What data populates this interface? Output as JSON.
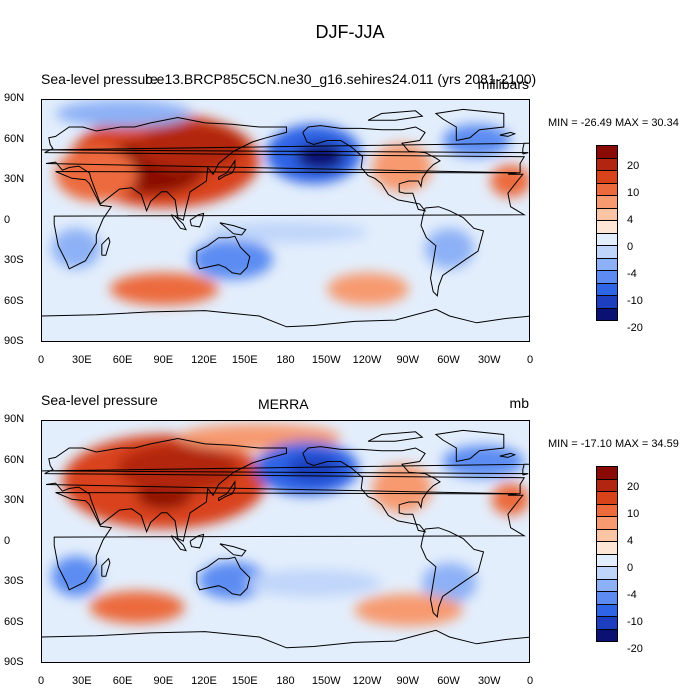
{
  "main_title": "DJF-JJA",
  "colors": {
    "scale": [
      "#0a1172",
      "#1d3fbf",
      "#2e64e6",
      "#5c8cf2",
      "#8db1f6",
      "#bfd5fa",
      "#e3eefc",
      "#fde6d6",
      "#fbc4a4",
      "#f79a70",
      "#ec6a3c",
      "#d9431a",
      "#b22510",
      "#8a0b05"
    ],
    "land": "#000000",
    "frame": "#000000"
  },
  "colorbar_levels": [
    "20",
    "10",
    "4",
    "0",
    "-4",
    "-10",
    "-20"
  ],
  "axes": {
    "y_ticks": [
      "90N",
      "60N",
      "30N",
      "0",
      "30S",
      "60S",
      "90S"
    ],
    "x_ticks": [
      "0",
      "30E",
      "60E",
      "90E",
      "120E",
      "150E",
      "180",
      "150W",
      "120W",
      "90W",
      "60W",
      "30W",
      "0"
    ]
  },
  "panels": [
    {
      "id": "top",
      "left_title": "Sea-level pressure",
      "center_title": "b.e13.BRCP85C5CN.ne30_g16.sehires24.011 (yrs 2081-2100)",
      "right_title": "millibars",
      "min_max": "MIN = -26.49 MAX =  30.34",
      "blobs": [
        {
          "lon": 90,
          "lat": 45,
          "rx": 70,
          "ry": 35,
          "level": 11
        },
        {
          "lon": 80,
          "lat": 40,
          "rx": 40,
          "ry": 20,
          "level": 13
        },
        {
          "lon": 110,
          "lat": 55,
          "rx": 40,
          "ry": 18,
          "level": 12
        },
        {
          "lon": 40,
          "lat": 35,
          "rx": 30,
          "ry": 20,
          "level": 10
        },
        {
          "lon": 200,
          "lat": 50,
          "rx": 35,
          "ry": 22,
          "level": 2
        },
        {
          "lon": 205,
          "lat": 48,
          "rx": 18,
          "ry": 10,
          "level": 0
        },
        {
          "lon": 320,
          "lat": 60,
          "rx": 25,
          "ry": 12,
          "level": 3
        },
        {
          "lon": 265,
          "lat": 40,
          "rx": 22,
          "ry": 18,
          "level": 9
        },
        {
          "lon": 345,
          "lat": 30,
          "rx": 15,
          "ry": 12,
          "level": 10
        },
        {
          "lon": 140,
          "lat": -28,
          "rx": 30,
          "ry": 15,
          "level": 3
        },
        {
          "lon": 25,
          "lat": -20,
          "rx": 18,
          "ry": 15,
          "level": 4
        },
        {
          "lon": 300,
          "lat": -20,
          "rx": 18,
          "ry": 15,
          "level": 4
        },
        {
          "lon": 90,
          "lat": -50,
          "rx": 40,
          "ry": 12,
          "level": 10
        },
        {
          "lon": 240,
          "lat": -50,
          "rx": 30,
          "ry": 12,
          "level": 9
        },
        {
          "lon": 180,
          "lat": -8,
          "rx": 60,
          "ry": 8,
          "level": 5
        },
        {
          "lon": 60,
          "lat": 80,
          "rx": 50,
          "ry": 10,
          "level": 4
        }
      ]
    },
    {
      "id": "bottom",
      "left_title": "Sea-level pressure",
      "center_title": "MERRA",
      "right_title": "mb",
      "min_max": "MIN = -17.10 MAX =  34.59",
      "blobs": [
        {
          "lon": 90,
          "lat": 45,
          "rx": 75,
          "ry": 35,
          "level": 11
        },
        {
          "lon": 90,
          "lat": 35,
          "rx": 20,
          "ry": 10,
          "level": 13
        },
        {
          "lon": 100,
          "lat": 55,
          "rx": 45,
          "ry": 18,
          "level": 12
        },
        {
          "lon": 160,
          "lat": 78,
          "rx": 60,
          "ry": 10,
          "level": 9
        },
        {
          "lon": 195,
          "lat": 55,
          "rx": 38,
          "ry": 20,
          "level": 2
        },
        {
          "lon": 200,
          "lat": 55,
          "rx": 20,
          "ry": 10,
          "level": 1
        },
        {
          "lon": 325,
          "lat": 60,
          "rx": 30,
          "ry": 12,
          "level": 3
        },
        {
          "lon": 265,
          "lat": 40,
          "rx": 22,
          "ry": 18,
          "level": 9
        },
        {
          "lon": 345,
          "lat": 32,
          "rx": 14,
          "ry": 12,
          "level": 10
        },
        {
          "lon": 140,
          "lat": -28,
          "rx": 25,
          "ry": 14,
          "level": 3
        },
        {
          "lon": 25,
          "lat": -25,
          "rx": 18,
          "ry": 15,
          "level": 3
        },
        {
          "lon": 300,
          "lat": -30,
          "rx": 20,
          "ry": 15,
          "level": 4
        },
        {
          "lon": 70,
          "lat": -48,
          "rx": 35,
          "ry": 12,
          "level": 10
        },
        {
          "lon": 270,
          "lat": -50,
          "rx": 40,
          "ry": 12,
          "level": 9
        },
        {
          "lon": 200,
          "lat": -30,
          "rx": 50,
          "ry": 10,
          "level": 5
        }
      ]
    }
  ]
}
